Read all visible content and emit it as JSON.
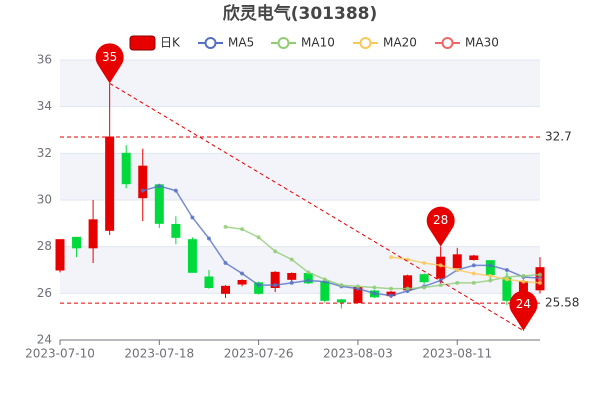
{
  "chart_data": {
    "type": "candlestick",
    "title": "欣灵电气(301388)",
    "categories": [
      "2023-07-10",
      null,
      null,
      null,
      null,
      null,
      "2023-07-18",
      null,
      null,
      null,
      null,
      null,
      "2023-07-26",
      null,
      null,
      null,
      null,
      null,
      "2023-08-03",
      null,
      null,
      null,
      null,
      null,
      "2023-08-11",
      null,
      null,
      null,
      null,
      null
    ],
    "series": [
      {
        "name": "日K",
        "type": "candlestick",
        "up_color": "#e60000",
        "down_color": "#00da3c",
        "open": [
          27.0,
          28.4,
          27.95,
          28.7,
          32.0,
          30.1,
          30.65,
          28.95,
          28.3,
          26.7,
          26.0,
          26.4,
          26.45,
          26.25,
          26.6,
          26.85,
          26.5,
          25.72,
          25.6,
          26.1,
          25.9,
          26.15,
          26.8,
          26.65,
          27.1,
          27.45,
          27.4,
          26.65,
          26.0,
          26.15
        ],
        "close": [
          28.3,
          27.95,
          29.15,
          32.7,
          30.7,
          31.45,
          29.0,
          28.4,
          26.9,
          26.25,
          26.3,
          26.55,
          26.0,
          26.9,
          26.85,
          26.45,
          25.7,
          25.63,
          26.25,
          25.85,
          26.05,
          26.75,
          26.5,
          27.55,
          27.65,
          27.6,
          26.8,
          25.7,
          26.5,
          27.1
        ],
        "low": [
          26.9,
          27.55,
          27.3,
          28.5,
          30.5,
          29.1,
          28.8,
          28.1,
          26.9,
          26.2,
          25.8,
          26.3,
          25.95,
          26.05,
          26.5,
          26.4,
          25.6,
          25.35,
          25.6,
          25.8,
          25.8,
          26.05,
          26.4,
          26.4,
          27.0,
          27.4,
          26.6,
          25.5,
          24.4,
          26.0
        ],
        "high": [
          28.3,
          28.4,
          30.0,
          35,
          32.35,
          32.2,
          30.7,
          29.3,
          28.4,
          27.0,
          26.35,
          26.6,
          26.5,
          26.95,
          26.9,
          26.95,
          26.5,
          25.75,
          26.3,
          26.15,
          26.1,
          26.8,
          26.85,
          28,
          27.95,
          27.65,
          27.4,
          26.9,
          26.6,
          27.55
        ]
      },
      {
        "name": "MA5",
        "type": "line",
        "color": "#5470c6",
        "values": [
          null,
          null,
          null,
          null,
          null,
          30.4,
          30.6,
          30.4,
          29.25,
          28.35,
          27.3,
          26.85,
          26.35,
          26.35,
          26.45,
          26.55,
          26.5,
          26.3,
          26.2,
          26.0,
          25.9,
          26.1,
          26.3,
          26.55,
          27.0,
          27.2,
          27.2,
          27.0,
          26.7,
          26.65
        ]
      },
      {
        "name": "MA10",
        "type": "line",
        "color": "#91cc75",
        "values": [
          null,
          null,
          null,
          null,
          null,
          null,
          null,
          null,
          null,
          null,
          28.85,
          28.75,
          28.4,
          27.8,
          27.45,
          26.9,
          26.6,
          26.35,
          26.3,
          26.25,
          26.2,
          26.2,
          26.25,
          26.35,
          26.45,
          26.45,
          26.55,
          26.7,
          26.75,
          26.8
        ]
      },
      {
        "name": "MA20",
        "type": "line",
        "color": "#fac858",
        "values": [
          null,
          null,
          null,
          null,
          null,
          null,
          null,
          null,
          null,
          null,
          null,
          null,
          null,
          null,
          null,
          null,
          null,
          null,
          null,
          null,
          27.55,
          27.45,
          27.3,
          27.2,
          27.0,
          26.85,
          26.75,
          26.6,
          26.5,
          26.45
        ]
      },
      {
        "name": "MA30",
        "type": "line",
        "color": "#ee6666",
        "values": [
          null,
          null,
          null,
          null,
          null,
          null,
          null,
          null,
          null,
          null,
          null,
          null,
          null,
          null,
          null,
          null,
          null,
          null,
          null,
          null,
          null,
          null,
          null,
          null,
          null,
          null,
          null,
          null,
          null,
          26.6
        ]
      }
    ],
    "ylim": [
      24,
      36
    ],
    "yticks": [
      24,
      26,
      28,
      30,
      32,
      34,
      36
    ],
    "mark_points": [
      {
        "index": 3,
        "value": 35
      },
      {
        "index": 23,
        "value": 28
      },
      {
        "index": 28,
        "value": 24.4,
        "label": "24"
      }
    ],
    "mark_lines": [
      32.7,
      25.58
    ],
    "mark_color": "#e60000"
  }
}
